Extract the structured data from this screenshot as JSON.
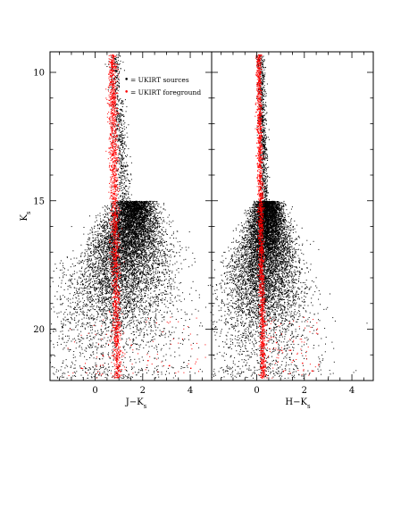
{
  "chart_data": [
    {
      "type": "scatter",
      "panel": "left",
      "xlabel": "J−K",
      "xlabel_sub": "s",
      "ylabel": "K",
      "ylabel_sub": "s",
      "xlim": [
        -1.9,
        4.9
      ],
      "ylim": [
        22,
        9.2
      ],
      "y_inverted": true,
      "xticks": [
        0,
        2,
        4
      ],
      "yticks": [
        10,
        15,
        20
      ],
      "legend": {
        "placement": "top-right",
        "entries": [
          {
            "marker": "•",
            "label": "= UKIRT sources",
            "color": "#000000"
          },
          {
            "marker": "•",
            "label": "= UKIRT foreground",
            "color": "#ff0000"
          }
        ]
      },
      "series": [
        {
          "name": "UKIRT sources",
          "color": "#000000",
          "points": [
            [
              0.8,
              10.2
            ],
            [
              0.9,
              11.5
            ],
            [
              1.0,
              12.6
            ],
            [
              1.1,
              13.6
            ],
            [
              1.3,
              14.6
            ],
            [
              1.5,
              15.3
            ],
            [
              1.6,
              16.0
            ],
            [
              2.0,
              16.3
            ],
            [
              2.5,
              16.6
            ],
            [
              3.0,
              16.7
            ],
            [
              3.4,
              17.0
            ],
            [
              2.8,
              17.4
            ],
            [
              2.2,
              17.8
            ],
            [
              1.8,
              18.2
            ],
            [
              1.4,
              18.6
            ],
            [
              0.8,
              18.8
            ],
            [
              0.2,
              18.9
            ],
            [
              -0.4,
              19.0
            ],
            [
              -0.9,
              19.2
            ],
            [
              -1.2,
              19.6
            ],
            [
              -1.0,
              20.0
            ],
            [
              -0.6,
              20.3
            ],
            [
              -0.2,
              20.6
            ],
            [
              0.3,
              20.9
            ],
            [
              0.6,
              21.1
            ],
            [
              1.2,
              19.8
            ],
            [
              1.5,
              19.2
            ],
            [
              1.9,
              18.8
            ],
            [
              2.4,
              18.0
            ],
            [
              1.1,
              17.2
            ]
          ]
        },
        {
          "name": "UKIRT foreground",
          "color": "#ff0000",
          "points": [
            [
              0.7,
              9.3
            ],
            [
              0.65,
              10.0
            ],
            [
              0.7,
              11.0
            ],
            [
              0.75,
              12.0
            ],
            [
              0.78,
              13.0
            ],
            [
              0.8,
              14.0
            ],
            [
              0.82,
              15.0
            ],
            [
              0.84,
              16.0
            ],
            [
              0.85,
              17.0
            ],
            [
              0.86,
              18.0
            ],
            [
              0.87,
              19.0
            ],
            [
              0.88,
              20.0
            ],
            [
              0.9,
              21.0
            ],
            [
              0.92,
              21.8
            ],
            [
              1.5,
              20.6
            ],
            [
              2.2,
              21.2
            ],
            [
              3.1,
              21.4
            ],
            [
              4.0,
              21.5
            ],
            [
              -0.6,
              21.5
            ],
            [
              0.3,
              21.0
            ]
          ]
        }
      ]
    },
    {
      "type": "scatter",
      "panel": "right",
      "xlabel": "H−K",
      "xlabel_sub": "s",
      "xlim": [
        -1.9,
        4.9
      ],
      "ylim": [
        22,
        9.2
      ],
      "y_inverted": true,
      "xticks": [
        0,
        2,
        4
      ],
      "yticks": [
        10,
        15,
        20
      ],
      "series": [
        {
          "name": "UKIRT sources",
          "color": "#000000",
          "points": [
            [
              0.1,
              10.2
            ],
            [
              0.15,
              11.6
            ],
            [
              0.2,
              12.6
            ],
            [
              0.25,
              13.6
            ],
            [
              0.4,
              14.6
            ],
            [
              0.6,
              15.4
            ],
            [
              0.9,
              16.0
            ],
            [
              1.2,
              16.6
            ],
            [
              1.5,
              17.2
            ],
            [
              1.8,
              17.8
            ],
            [
              2.0,
              18.4
            ],
            [
              1.6,
              19.0
            ],
            [
              1.2,
              19.6
            ],
            [
              0.8,
              20.2
            ],
            [
              0.4,
              20.8
            ],
            [
              0.0,
              21.2
            ],
            [
              -0.4,
              21.0
            ],
            [
              -0.8,
              20.4
            ],
            [
              -1.1,
              19.8
            ],
            [
              -0.9,
              19.0
            ],
            [
              -0.5,
              18.2
            ],
            [
              -0.2,
              17.4
            ],
            [
              0.5,
              18.0
            ],
            [
              1.0,
              18.8
            ],
            [
              2.4,
              19.4
            ],
            [
              0.3,
              19.5
            ]
          ]
        },
        {
          "name": "UKIRT foreground",
          "color": "#ff0000",
          "points": [
            [
              0.05,
              9.3
            ],
            [
              0.05,
              10.0
            ],
            [
              0.08,
              11.0
            ],
            [
              0.1,
              12.0
            ],
            [
              0.12,
              13.0
            ],
            [
              0.14,
              14.0
            ],
            [
              0.16,
              15.0
            ],
            [
              0.18,
              16.0
            ],
            [
              0.2,
              17.0
            ],
            [
              0.2,
              18.0
            ],
            [
              0.22,
              19.0
            ],
            [
              0.22,
              20.0
            ],
            [
              0.24,
              21.0
            ],
            [
              0.25,
              21.8
            ],
            [
              0.8,
              20.5
            ],
            [
              1.4,
              20.8
            ],
            [
              1.9,
              21.3
            ],
            [
              2.3,
              21.6
            ]
          ]
        }
      ]
    }
  ]
}
